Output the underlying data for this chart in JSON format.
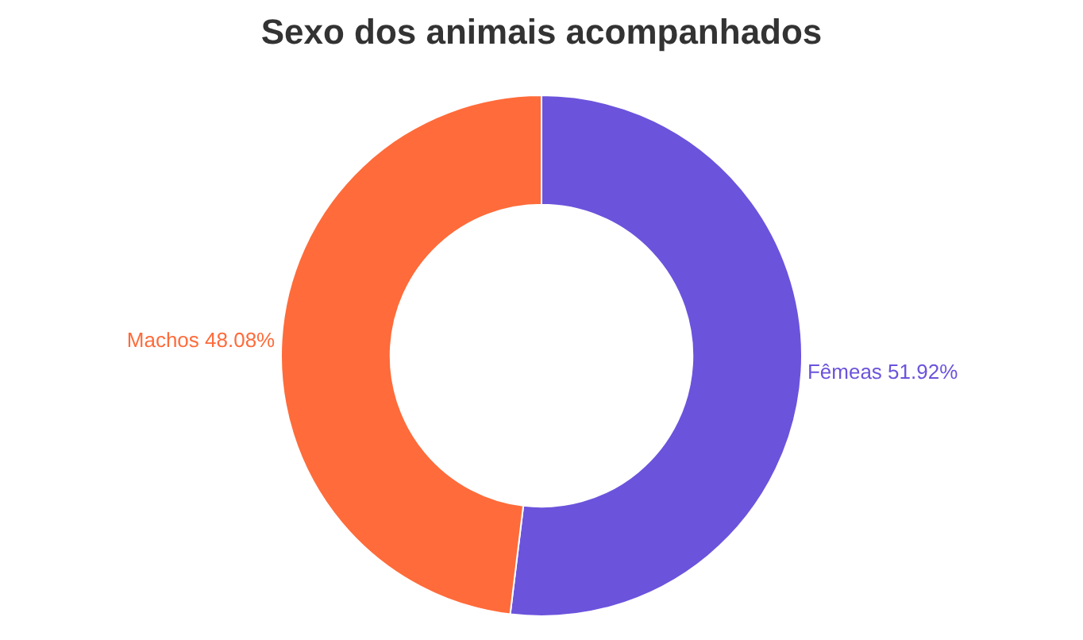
{
  "chart_data": {
    "type": "donut",
    "title": "Sexo dos animais acompanhados",
    "categories": [
      "Fêmeas",
      "Machos"
    ],
    "values": [
      51.92,
      48.08
    ],
    "value_labels": [
      "51.92%",
      "48.08%"
    ],
    "colors": [
      "#6c53dc",
      "#ff6b3a"
    ],
    "legend": false
  }
}
